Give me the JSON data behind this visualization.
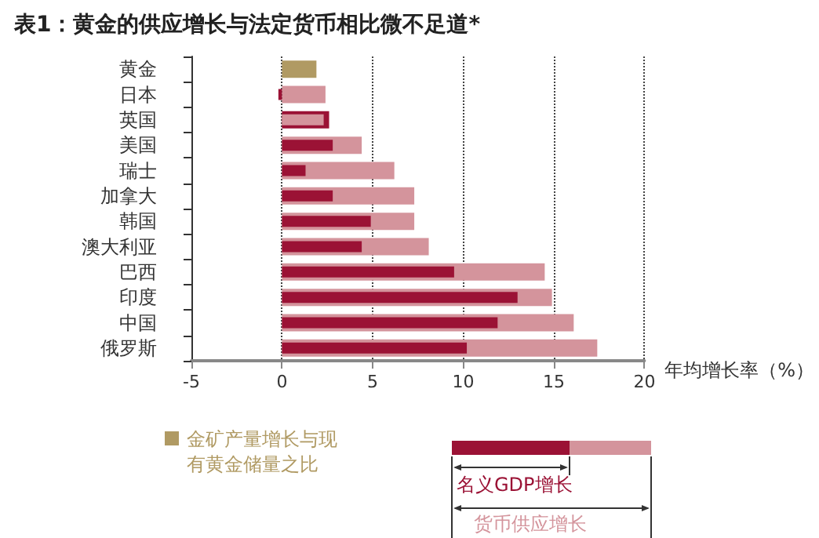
{
  "chart_data": {
    "type": "bar",
    "orientation": "horizontal",
    "title": "表1：黄金的供应增长与法定货币相比微不足道*",
    "xlabel": "年均增长率（%）",
    "categories": [
      "黄金",
      "日本",
      "英国",
      "美国",
      "瑞士",
      "加拿大",
      "韩国",
      "澳大利亚",
      "巴西",
      "印度",
      "中国",
      "俄罗斯"
    ],
    "series": [
      {
        "name": "金矿产量增长与现有黄金储量之比",
        "color": "#b09a63",
        "values": [
          1.9,
          null,
          null,
          null,
          null,
          null,
          null,
          null,
          null,
          null,
          null,
          null
        ]
      },
      {
        "name": "名义GDP增长",
        "color": "#9b1235",
        "values": [
          null,
          -0.2,
          2.6,
          2.8,
          1.3,
          2.8,
          4.9,
          4.4,
          9.5,
          13.0,
          11.9,
          10.2
        ]
      },
      {
        "name": "货币供应增长",
        "color": "#d4949c",
        "values": [
          null,
          2.4,
          2.3,
          4.4,
          6.2,
          7.3,
          7.3,
          8.1,
          14.5,
          14.9,
          16.1,
          17.4
        ]
      }
    ],
    "xlim": [
      -5,
      20
    ],
    "xticks": [
      -5,
      0,
      5,
      10,
      15,
      20
    ],
    "grid": "x",
    "legend": "bottom left"
  }
}
